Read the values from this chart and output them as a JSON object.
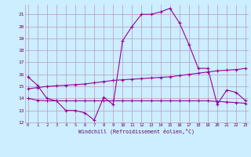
{
  "xlabel": "Windchill (Refroidissement éolien,°C)",
  "bg_color": "#cceeff",
  "grid_color": "#bb99bb",
  "line_color": "#990099",
  "x": [
    0,
    1,
    2,
    3,
    4,
    5,
    6,
    7,
    8,
    9,
    10,
    11,
    12,
    13,
    14,
    15,
    16,
    17,
    18,
    19,
    20,
    21,
    22,
    23
  ],
  "line1": [
    15.8,
    15.1,
    14.0,
    13.8,
    13.0,
    13.0,
    12.8,
    12.2,
    14.1,
    13.5,
    18.8,
    20.0,
    21.0,
    21.0,
    21.2,
    21.5,
    20.3,
    18.5,
    16.5,
    16.5,
    13.5,
    14.7,
    14.5,
    13.8
  ],
  "line2": [
    14.8,
    14.9,
    15.0,
    15.05,
    15.1,
    15.15,
    15.2,
    15.3,
    15.4,
    15.5,
    15.55,
    15.6,
    15.65,
    15.7,
    15.75,
    15.8,
    15.9,
    16.0,
    16.1,
    16.2,
    16.3,
    16.35,
    16.4,
    16.5
  ],
  "line3": [
    14.0,
    13.85,
    13.8,
    13.8,
    13.8,
    13.8,
    13.8,
    13.8,
    13.8,
    13.8,
    13.8,
    13.8,
    13.8,
    13.8,
    13.8,
    13.8,
    13.8,
    13.8,
    13.8,
    13.8,
    13.75,
    13.7,
    13.65,
    13.6
  ],
  "ylim": [
    12,
    21.8
  ],
  "yticks": [
    12,
    13,
    14,
    15,
    16,
    17,
    18,
    19,
    20,
    21
  ],
  "xticks": [
    0,
    1,
    2,
    3,
    4,
    5,
    6,
    7,
    8,
    9,
    10,
    11,
    12,
    13,
    14,
    15,
    16,
    17,
    18,
    19,
    20,
    21,
    22,
    23
  ],
  "xlim": [
    -0.3,
    23.3
  ]
}
